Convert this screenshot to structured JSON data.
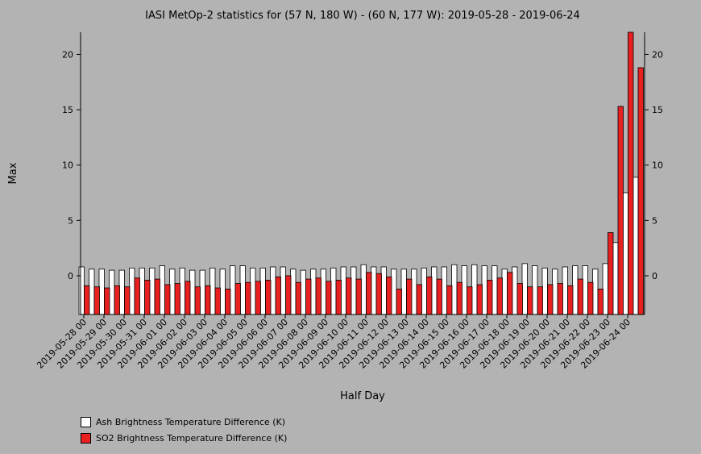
{
  "chart_data": {
    "type": "bar",
    "title": "IASI MetOp-2 statistics for (57 N, 180 W) - (60 N, 177 W): 2019-05-28 - 2019-06-24",
    "xlabel": "Half Day",
    "ylabel": "Max",
    "ylim": [
      -3.5,
      22
    ],
    "yticks": [
      0,
      5,
      10,
      15,
      20
    ],
    "categories": [
      "2019-05-28 00",
      "2019-05-28 12",
      "2019-05-29 00",
      "2019-05-29 12",
      "2019-05-30 00",
      "2019-05-30 12",
      "2019-05-31 00",
      "2019-05-31 12",
      "2019-06-01 00",
      "2019-06-01 12",
      "2019-06-02 00",
      "2019-06-02 12",
      "2019-06-03 00",
      "2019-06-03 12",
      "2019-06-04 00",
      "2019-06-04 12",
      "2019-06-05 00",
      "2019-06-05 12",
      "2019-06-06 00",
      "2019-06-06 12",
      "2019-06-07 00",
      "2019-06-07 12",
      "2019-06-08 00",
      "2019-06-08 12",
      "2019-06-09 00",
      "2019-06-09 12",
      "2019-06-10 00",
      "2019-06-10 12",
      "2019-06-11 00",
      "2019-06-11 12",
      "2019-06-12 00",
      "2019-06-12 12",
      "2019-06-13 00",
      "2019-06-13 12",
      "2019-06-14 00",
      "2019-06-14 12",
      "2019-06-15 00",
      "2019-06-15 12",
      "2019-06-16 00",
      "2019-06-16 12",
      "2019-06-17 00",
      "2019-06-17 12",
      "2019-06-18 00",
      "2019-06-18 12",
      "2019-06-19 00",
      "2019-06-19 12",
      "2019-06-20 00",
      "2019-06-20 12",
      "2019-06-21 00",
      "2019-06-21 12",
      "2019-06-22 00",
      "2019-06-22 12",
      "2019-06-23 00",
      "2019-06-23 12",
      "2019-06-24 00",
      "2019-06-24 12"
    ],
    "tick_labels": [
      "2019-05-28 00",
      "2019-05-29 00",
      "2019-05-30 00",
      "2019-05-31 00",
      "2019-06-01 00",
      "2019-06-02 00",
      "2019-06-03 00",
      "2019-06-04 00",
      "2019-06-05 00",
      "2019-06-06 00",
      "2019-06-07 00",
      "2019-06-08 00",
      "2019-06-09 00",
      "2019-06-10 00",
      "2019-06-11 00",
      "2019-06-12 00",
      "2019-06-13 00",
      "2019-06-14 00",
      "2019-06-15 00",
      "2019-06-16 00",
      "2019-06-17 00",
      "2019-06-18 00",
      "2019-06-19 00",
      "2019-06-20 00",
      "2019-06-21 00",
      "2019-06-22 00",
      "2019-06-23 00",
      "2019-06-24 00"
    ],
    "series": [
      {
        "name": "Ash Brightness Temperature Difference (K)",
        "color": "#ffffff",
        "values": [
          0.8,
          0.6,
          0.6,
          0.5,
          0.5,
          0.7,
          0.7,
          0.7,
          0.9,
          0.6,
          0.7,
          0.5,
          0.5,
          0.7,
          0.6,
          0.9,
          0.9,
          0.7,
          0.7,
          0.8,
          0.8,
          0.6,
          0.5,
          0.6,
          0.6,
          0.7,
          0.8,
          0.8,
          1.0,
          0.8,
          0.8,
          0.6,
          0.6,
          0.6,
          0.7,
          0.8,
          0.8,
          1.0,
          0.9,
          1.0,
          0.9,
          0.9,
          0.6,
          0.8,
          1.1,
          0.9,
          0.7,
          0.6,
          0.8,
          0.9,
          0.9,
          0.6,
          1.1,
          3.0,
          7.5,
          8.9
        ]
      },
      {
        "name": "SO2 Brightness Temperature Difference (K)",
        "color": "#e82020",
        "values": [
          -0.9,
          -1.0,
          -1.1,
          -0.9,
          -1.0,
          -0.2,
          -0.4,
          -0.3,
          -0.8,
          -0.7,
          -0.5,
          -1.0,
          -0.9,
          -1.1,
          -1.2,
          -0.7,
          -0.6,
          -0.5,
          -0.4,
          -0.1,
          0.0,
          -0.6,
          -0.3,
          -0.2,
          -0.5,
          -0.4,
          -0.2,
          -0.3,
          0.3,
          0.2,
          -0.1,
          -1.2,
          -0.3,
          -0.8,
          -0.1,
          -0.3,
          -0.9,
          -0.6,
          -1.0,
          -0.8,
          -0.4,
          -0.2,
          0.3,
          -0.7,
          -1.0,
          -1.0,
          -0.8,
          -0.7,
          -0.9,
          -0.3,
          -0.6,
          -1.2,
          3.9,
          15.3,
          22.0,
          18.8
        ]
      }
    ],
    "legend_position": "bottom-left",
    "grid": false
  }
}
